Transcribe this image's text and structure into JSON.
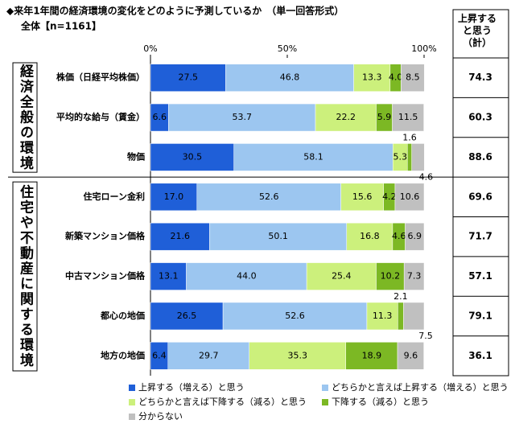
{
  "chart_data": {
    "type": "stacked-bar",
    "title": "◆来年1年間の経済環境の変化をどのように予測しているか　（単一回答形式）",
    "subtitle": "全体【n=1161】",
    "groups": [
      {
        "label": "経済全般の環境",
        "categories": [
          "株価（日経平均株価）",
          "平均的な給与（賃金）",
          "物価"
        ]
      },
      {
        "label": "住宅や不動産に関する環境",
        "categories": [
          "住宅ローン金利",
          "新築マンション価格",
          "中古マンション価格",
          "都心の地価",
          "地方の地価"
        ]
      }
    ],
    "series": [
      {
        "name": "上昇する（増える）と思う",
        "color": "#1f5fd8",
        "values": [
          27.5,
          6.6,
          30.5,
          17.0,
          21.6,
          13.1,
          26.5,
          6.4
        ],
        "value_labels": [
          "27.5",
          "6.6",
          "30.5",
          "17.0",
          "21.6",
          "13.1",
          "26.5",
          "6.4"
        ]
      },
      {
        "name": "どちらかと言えば上昇する（増える）と思う",
        "color": "#9cc6f0",
        "values": [
          46.8,
          53.7,
          58.1,
          52.6,
          50.1,
          44.0,
          52.6,
          29.7
        ],
        "value_labels": [
          "46.8",
          "53.7",
          "58.1",
          "52.6",
          "50.1",
          "44.0",
          "52.6",
          "29.7"
        ]
      },
      {
        "name": "どちらかと言えば下降する（減る）と思う",
        "color": "#ccf07c",
        "values": [
          13.3,
          22.2,
          5.3,
          15.6,
          16.8,
          25.4,
          11.3,
          35.3
        ],
        "value_labels": [
          "13.3",
          "22.2",
          "5.3",
          "15.6",
          "16.8",
          "25.4",
          "11.3",
          "35.3"
        ]
      },
      {
        "name": "下降する（減る）と思う",
        "color": "#7cb824",
        "values": [
          4.0,
          5.9,
          1.6,
          4.2,
          4.6,
          10.2,
          2.1,
          18.9
        ],
        "value_labels": [
          "4.0",
          "5.9",
          "1.6",
          "4.2",
          "4.6",
          "10.2",
          "2.1",
          "18.9"
        ]
      },
      {
        "name": "分からない",
        "color": "#c0c0c0",
        "values": [
          8.5,
          11.5,
          4.6,
          10.6,
          6.9,
          7.3,
          7.5,
          9.6
        ],
        "value_labels": [
          "8.5",
          "11.5",
          "4.6",
          "10.6",
          "6.9",
          "7.3",
          "7.5",
          "9.6"
        ]
      }
    ],
    "xlim": [
      0,
      100
    ],
    "xticks": [
      {
        "value": 0,
        "label": "0%"
      },
      {
        "value": 50,
        "label": "50%"
      },
      {
        "value": 100,
        "label": "100%"
      }
    ],
    "total": {
      "label": "上昇すると思う（計）",
      "values": [
        74.3,
        60.3,
        88.6,
        69.6,
        71.7,
        57.1,
        79.1,
        36.1
      ]
    }
  }
}
